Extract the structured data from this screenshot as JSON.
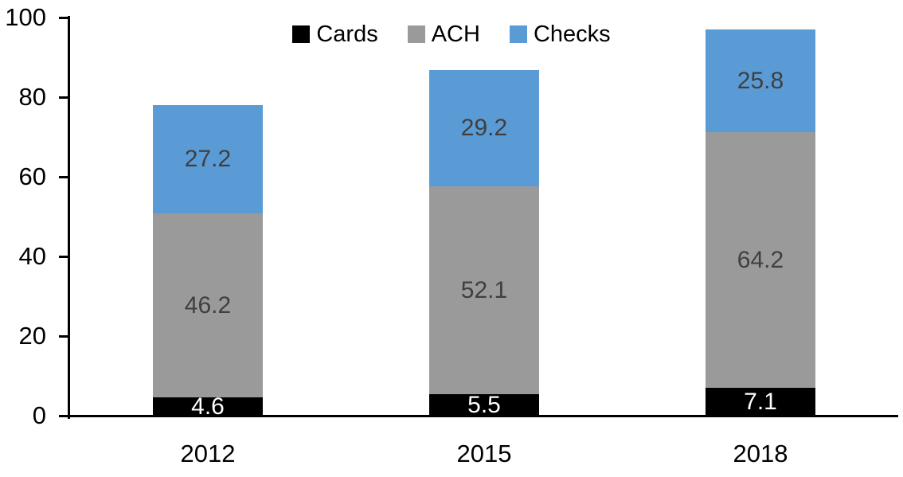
{
  "chart_data": {
    "type": "bar",
    "stacked": true,
    "title": "",
    "xlabel": "",
    "ylabel": "",
    "categories": [
      "2012",
      "2015",
      "2018"
    ],
    "series": [
      {
        "name": "Cards",
        "color": "#000000",
        "label_color": "#ffffff",
        "values": [
          4.6,
          5.5,
          7.1
        ]
      },
      {
        "name": "ACH",
        "color": "#9a9a9a",
        "label_color": "#3f3f3f",
        "values": [
          46.2,
          52.1,
          64.2
        ]
      },
      {
        "name": "Checks",
        "color": "#5b9bd5",
        "label_color": "#3f3f3f",
        "values": [
          27.2,
          29.2,
          25.8
        ]
      }
    ],
    "ylim": [
      0,
      100
    ],
    "yticks": [
      0,
      20,
      40,
      60,
      80,
      100
    ],
    "grid": false,
    "legend_position": "top",
    "value_labels": true,
    "value_label_decimals": 1,
    "axis_color": "#000000",
    "background_color": "#ffffff"
  }
}
